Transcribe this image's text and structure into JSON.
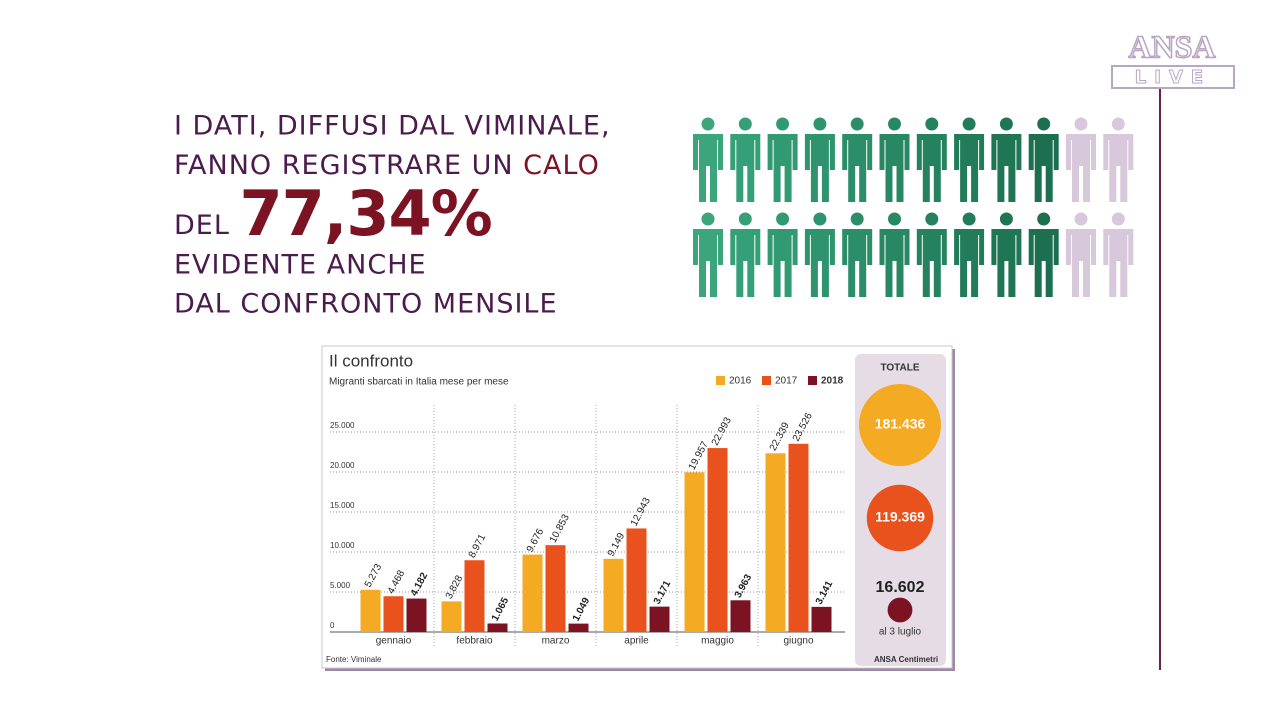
{
  "headline": {
    "line1": "I DATI, DIFFUSI DAL VIMINALE,",
    "line2": "FANNO REGISTRARE UN ",
    "line2_highlight": "CALO",
    "line3": "DEL ",
    "line3_highlight": "77,34%",
    "line4": "EVIDENTE ANCHE",
    "line5": "DAL CONFRONTO MENSILE"
  },
  "logo": {
    "top": "ANSA",
    "bottom": "LIVE"
  },
  "chart_data": {
    "type": "bar",
    "title": "Il confronto",
    "subtitle": "Migranti sbarcati in Italia mese per mese",
    "source": "Fonte: Viminale",
    "credit": "ANSA Centimetri",
    "categories": [
      "gennaio",
      "febbraio",
      "marzo",
      "aprile",
      "maggio",
      "giugno"
    ],
    "series": [
      {
        "name": "2016",
        "color": "#f4aa22",
        "values": [
          5273,
          3828,
          9676,
          9149,
          19957,
          22339
        ],
        "value_labels": [
          "5.273",
          "3.828",
          "9.676",
          "9.149",
          "19.957",
          "22.339"
        ]
      },
      {
        "name": "2017",
        "color": "#e9521c",
        "values": [
          4468,
          8971,
          10853,
          12943,
          22993,
          23526
        ],
        "value_labels": [
          "4.468",
          "8.971",
          "10.853",
          "12.943",
          "22.993",
          "23.526"
        ]
      },
      {
        "name": "2018",
        "color": "#7b1322",
        "values": [
          4182,
          1065,
          1049,
          3171,
          3963,
          3141
        ],
        "value_labels": [
          "4.182",
          "1.065",
          "1.049",
          "3.171",
          "3.963",
          "3.141"
        ]
      }
    ],
    "ylim": [
      0,
      28000
    ],
    "yticks": [
      0,
      {
        "value": 5000,
        "label": "5.000"
      },
      {
        "value": 10000,
        "label": "10.000"
      },
      {
        "value": 15000,
        "label": "15.000"
      },
      {
        "value": 20000,
        "label": "20.000"
      },
      {
        "value": 25000,
        "label": "25.000"
      }
    ],
    "grid": true,
    "totals_title": "TOTALE",
    "totals": [
      181436,
      119369,
      16602
    ],
    "totals_labels": [
      "181.436",
      "119.369",
      "16.602"
    ],
    "totals_note": "al 3 luglio"
  }
}
